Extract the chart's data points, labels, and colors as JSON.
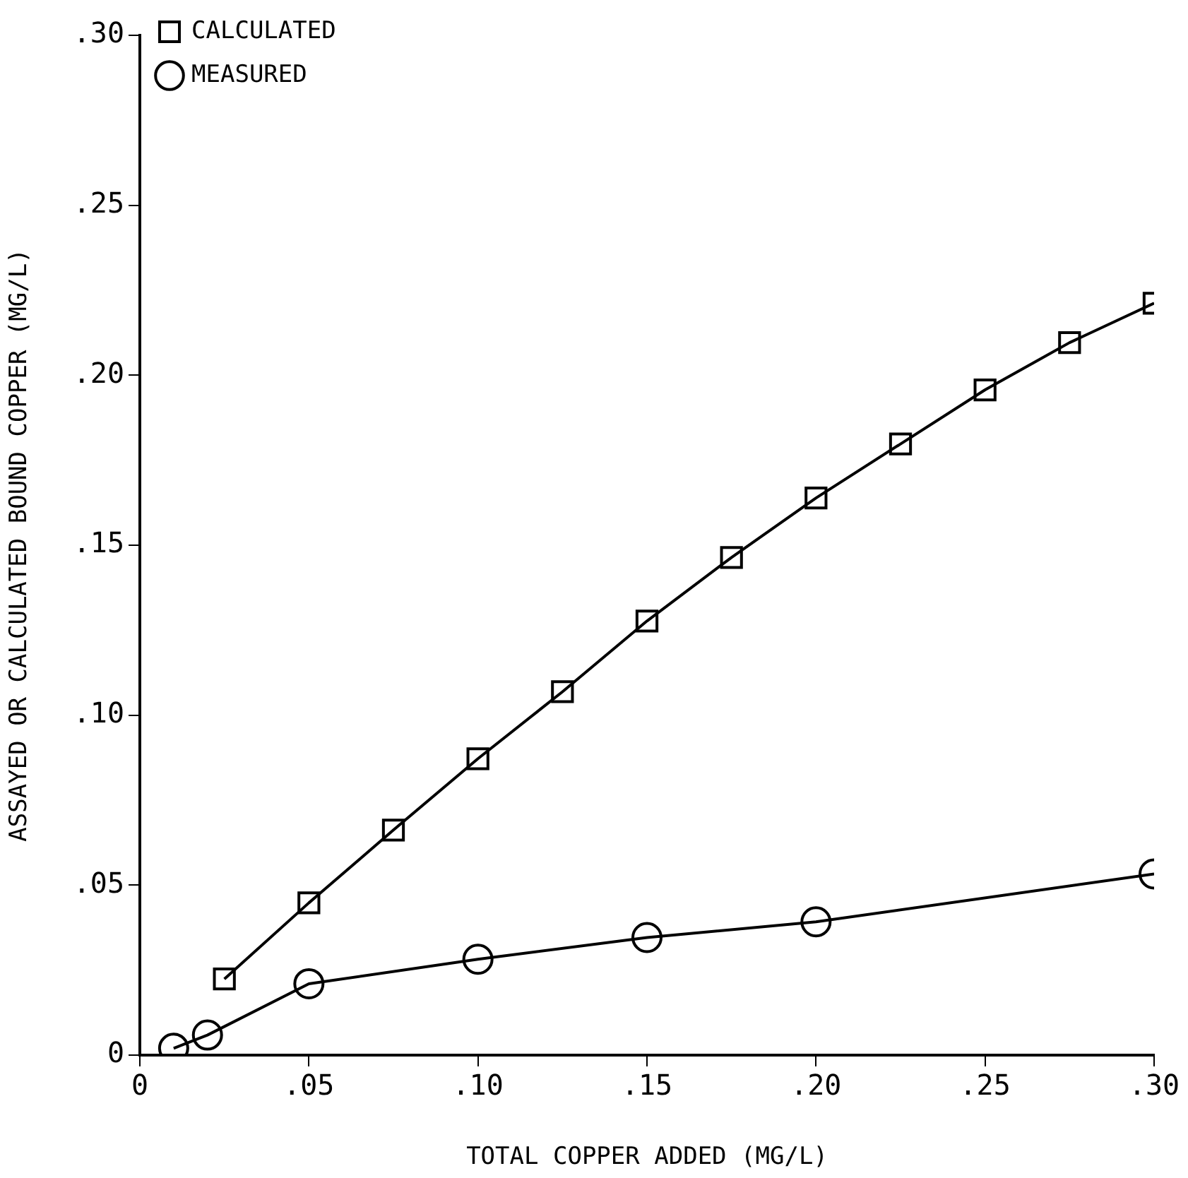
{
  "chart_data": {
    "type": "line",
    "xlabel": "TOTAL COPPER ADDED (MG/L)",
    "ylabel": "ASSAYED OR CALCULATED BOUND COPPER (MG/L)",
    "xlim": [
      0,
      0.3
    ],
    "xticks": [
      0,
      {
        "value": 0.05,
        "label": ".05"
      },
      {
        "value": 0.1,
        "label": ".10"
      },
      {
        "value": 0.15,
        "label": ".15"
      },
      {
        "value": 0.2,
        "label": ".20"
      },
      {
        "value": 0.25,
        "label": ".25"
      },
      {
        "value": 0.3,
        "label": ".30"
      }
    ],
    "ylim": [
      0,
      0.3
    ],
    "yticks": [
      0,
      {
        "value": 0.05,
        "label": ".05"
      },
      {
        "value": 0.1,
        "label": ".10"
      },
      {
        "value": 0.15,
        "label": ".15"
      },
      {
        "value": 0.2,
        "label": ".20"
      },
      {
        "value": 0.25,
        "label": ".25"
      },
      {
        "value": 0.3,
        "label": ".30"
      }
    ],
    "grid": false,
    "legend": "top left",
    "line_style": "solid",
    "series": [
      {
        "name": "CALCULATED",
        "color": "#000000",
        "marker": "square",
        "x": [
          0.025,
          0.05,
          0.075,
          0.1,
          0.125,
          0.15,
          0.175,
          0.2,
          0.225,
          0.25,
          0.275,
          0.3
        ],
        "values": [
          0.0224,
          0.0448,
          0.0662,
          0.0872,
          0.1069,
          0.1277,
          0.1464,
          0.1639,
          0.1798,
          0.1957,
          0.2096,
          0.2212
        ]
      },
      {
        "name": "MEASURED",
        "color": "#000000",
        "marker": "circle",
        "x": [
          0.01,
          0.02,
          0.05,
          0.1,
          0.15,
          0.2,
          0.3
        ],
        "values": [
          0.002,
          0.0059,
          0.021,
          0.0282,
          0.0346,
          0.0392,
          0.0533
        ]
      }
    ]
  }
}
